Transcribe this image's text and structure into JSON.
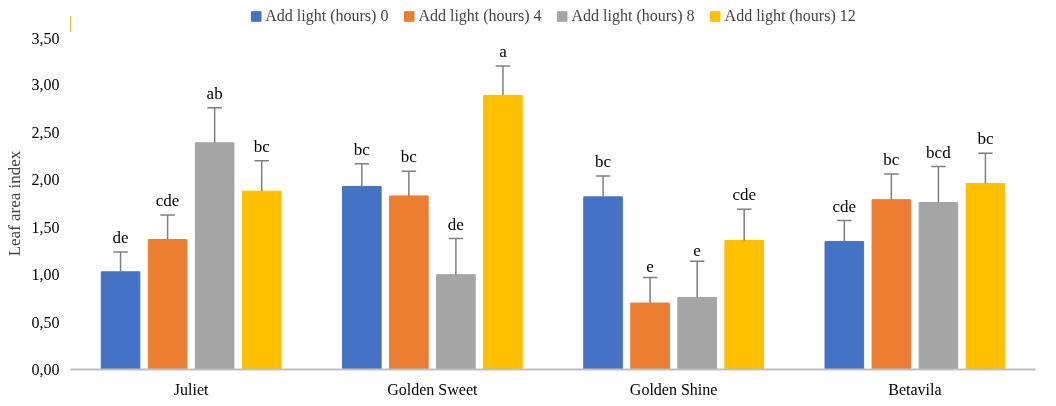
{
  "chart_data": {
    "type": "bar",
    "ylabel": "Leaf area index",
    "categories": [
      "Juliet",
      "Golden Sweet",
      "Golden Shine",
      "Betavila"
    ],
    "series": [
      {
        "name": "Add light (hours) 0",
        "color": "#4472c4",
        "values": [
          1.03,
          1.93,
          1.82,
          1.35
        ],
        "errors": [
          [
            1.03,
            1.24
          ],
          [
            1.93,
            2.17
          ],
          [
            1.82,
            2.04
          ],
          [
            1.35,
            1.57
          ]
        ],
        "value_labels": [
          "de",
          "bc",
          "bc",
          "cde"
        ]
      },
      {
        "name": "Add light (hours) 4",
        "color": "#ed7d31",
        "values": [
          1.37,
          1.83,
          0.7,
          1.79
        ],
        "errors": [
          [
            1.37,
            1.63
          ],
          [
            1.83,
            2.09
          ],
          [
            0.7,
            0.97
          ],
          [
            1.79,
            2.06
          ]
        ],
        "value_labels": [
          "cde",
          "bc",
          "e",
          "bc"
        ]
      },
      {
        "name": "Add light (hours) 8",
        "color": "#a5a5a5",
        "values": [
          2.39,
          1.0,
          0.76,
          1.76
        ],
        "errors": [
          [
            2.39,
            2.76
          ],
          [
            1.0,
            1.38
          ],
          [
            0.76,
            1.14
          ],
          [
            1.76,
            2.14
          ]
        ],
        "value_labels": [
          "ab",
          "de",
          "e",
          "bcd"
        ]
      },
      {
        "name": "Add light (hours) 12",
        "color": "#ffc000",
        "values": [
          1.88,
          2.89,
          1.36,
          1.96
        ],
        "errors": [
          [
            1.88,
            2.2
          ],
          [
            2.89,
            3.2
          ],
          [
            1.36,
            1.69
          ],
          [
            1.96,
            2.28
          ]
        ],
        "value_labels": [
          "bc",
          "a",
          "cde",
          "bc"
        ]
      }
    ],
    "ylim": [
      0,
      3.5
    ],
    "yticks": [
      {
        "value": 0,
        "label": "0,00"
      },
      {
        "value": 0.5,
        "label": "0,50"
      },
      {
        "value": 1,
        "label": "1,00"
      },
      {
        "value": 1.5,
        "label": "1,50"
      },
      {
        "value": 2,
        "label": "2,00"
      },
      {
        "value": 2.5,
        "label": "2,50"
      },
      {
        "value": 3,
        "label": "3,00"
      },
      {
        "value": 3.5,
        "label": "3,50"
      }
    ],
    "grid": false,
    "legend": "top"
  }
}
